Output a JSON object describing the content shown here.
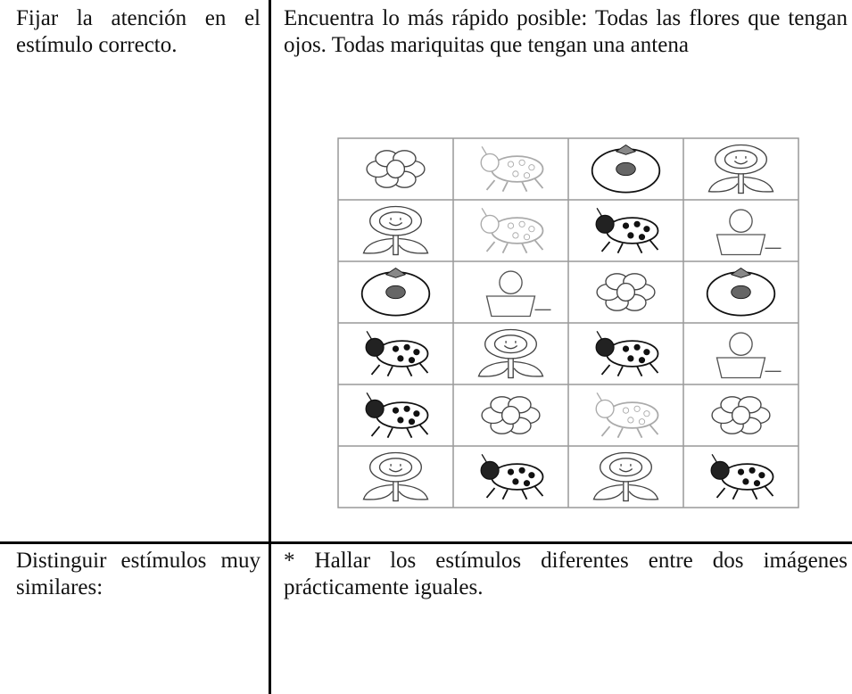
{
  "table": {
    "rows": [
      [
        "Fijar la atención en el estímulo correcto.",
        "Encuentra lo más rápido posible: Todas las flores que tengan ojos. Todas mariquitas que tengan una antena"
      ],
      [
        "Distinguir estímulos muy similares:",
        "* Hallar los estímulos diferentes entre dos imágenes prácticamente iguales."
      ]
    ]
  }
}
